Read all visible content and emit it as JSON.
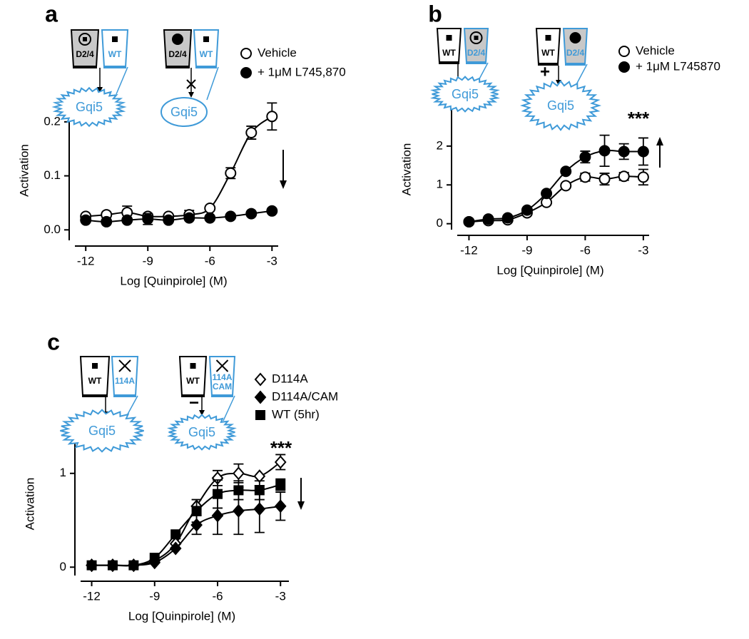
{
  "chart_data": [
    {
      "type": "line",
      "panel_label": "a",
      "xlabel": "Log [Quinpirole] (M)",
      "ylabel": "Activation",
      "xlim": [
        -12.8,
        -2.7
      ],
      "ylim": [
        -0.03,
        0.25
      ],
      "xticks": [
        -12,
        -9,
        -6,
        -3
      ],
      "yticks": [
        {
          "value": 0,
          "label": "0.0"
        },
        0.1,
        0.2
      ],
      "x": [
        -12,
        -11,
        -10,
        -9,
        -8,
        -7,
        -6,
        -5,
        -4,
        -3
      ],
      "series": [
        {
          "name": "Vehicle",
          "color": "#000000",
          "marker": "circle-open",
          "values": [
            0.025,
            0.028,
            0.032,
            0.025,
            0.025,
            0.028,
            0.04,
            0.105,
            0.18,
            0.21
          ],
          "errors": [
            null,
            null,
            0.012,
            null,
            null,
            0.008,
            null,
            0.01,
            0.012,
            0.025
          ]
        },
        {
          "name": "+ 1μM L745,870",
          "color": "#000000",
          "marker": "circle-filled",
          "values": [
            0.018,
            0.015,
            0.018,
            0.02,
            0.018,
            0.022,
            0.022,
            0.025,
            0.03,
            0.035
          ],
          "errors": [
            null,
            null,
            null,
            0.01,
            null,
            null,
            null,
            null,
            null,
            null
          ]
        }
      ],
      "diagram_labels": [
        "D2/4",
        "WT",
        "Gqi5",
        "D2/4",
        "WT",
        "Gqi5"
      ]
    },
    {
      "type": "line",
      "panel_label": "b",
      "xlabel": "Log [Quinpirole] (M)",
      "ylabel": "Activation",
      "xlim": [
        -12.9,
        -2.7
      ],
      "ylim": [
        -0.3,
        3.1
      ],
      "xticks": [
        -12,
        -9,
        -6,
        -3
      ],
      "yticks": [
        0,
        1,
        2
      ],
      "x": [
        -12,
        -11,
        -10,
        -9,
        -8,
        -7,
        -6,
        -5,
        -4,
        -3
      ],
      "series": [
        {
          "name": "Vehicle",
          "color": "#000000",
          "marker": "circle-open",
          "values": [
            0.05,
            0.08,
            0.1,
            0.28,
            0.55,
            0.98,
            1.2,
            1.15,
            1.22,
            1.2
          ],
          "errors": [
            null,
            null,
            null,
            null,
            null,
            null,
            0.1,
            0.15,
            0.1,
            0.2
          ]
        },
        {
          "name": "+ 1μM L745870",
          "color": "#000000",
          "marker": "circle-filled",
          "values": [
            0.05,
            0.12,
            0.15,
            0.35,
            0.78,
            1.35,
            1.72,
            1.88,
            1.86,
            1.86
          ],
          "errors": [
            null,
            null,
            null,
            null,
            null,
            null,
            0.15,
            0.4,
            0.2,
            0.35
          ]
        }
      ],
      "annotation": "***",
      "diagram_labels": [
        "WT",
        "D2/4",
        "Gqi5",
        "WT",
        "D2/4",
        "+",
        "Gqi5"
      ]
    },
    {
      "type": "line",
      "panel_label": "c",
      "xlabel": "Log [Quinpirole] (M)",
      "ylabel": "Activation",
      "xlim": [
        -12.8,
        -2.6
      ],
      "ylim": [
        -0.15,
        1.5
      ],
      "xticks": [
        -12,
        -9,
        -6,
        -3
      ],
      "yticks": [
        0,
        1
      ],
      "x": [
        -12,
        -11,
        -10,
        -9,
        -8,
        -7,
        -6,
        -5,
        -4,
        -3
      ],
      "series": [
        {
          "name": "D114A",
          "color": "#000000",
          "marker": "diamond-open",
          "values": [
            0.02,
            0.02,
            0.02,
            0.07,
            0.25,
            0.65,
            0.95,
            1.0,
            0.97,
            1.12
          ],
          "errors": [
            null,
            null,
            null,
            null,
            null,
            null,
            0.08,
            0.1,
            null,
            0.08
          ]
        },
        {
          "name": "D114A/CAM",
          "color": "#000000",
          "marker": "diamond-filled",
          "values": [
            0.02,
            0.02,
            0.02,
            0.05,
            0.2,
            0.45,
            0.55,
            0.6,
            0.62,
            0.65
          ],
          "errors": [
            null,
            null,
            null,
            null,
            null,
            0.1,
            0.2,
            0.25,
            0.25,
            0.15
          ]
        },
        {
          "name": "WT (5hr)",
          "color": "#000000",
          "marker": "square-filled",
          "values": [
            0.02,
            0.02,
            0.02,
            0.1,
            0.35,
            0.6,
            0.78,
            0.82,
            0.82,
            0.88
          ],
          "errors": [
            null,
            null,
            null,
            null,
            null,
            0.12,
            0.15,
            0.1,
            0.1,
            0.06
          ]
        }
      ],
      "annotation": "***",
      "diagram_labels": [
        "WT",
        "114A",
        "Gqi5",
        "WT",
        "114A",
        "CAM",
        "−",
        "Gqi5"
      ]
    }
  ]
}
